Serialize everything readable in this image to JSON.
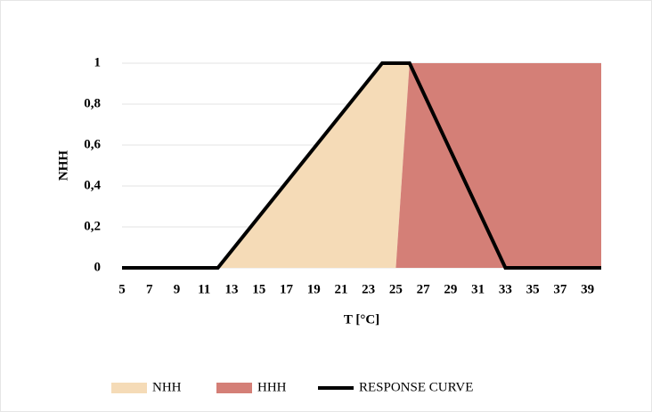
{
  "chart_data": {
    "type": "area",
    "x_label": "T [°C]",
    "y_label": "NHH",
    "xlim": [
      5,
      40
    ],
    "xticks": [
      5,
      7,
      9,
      11,
      13,
      15,
      17,
      19,
      21,
      23,
      25,
      27,
      29,
      31,
      33,
      35,
      37,
      39
    ],
    "ylim": [
      0,
      1
    ],
    "yticks": [
      0,
      {
        "value": 0.2,
        "label": "0,2"
      },
      {
        "value": 0.4,
        "label": "0,4"
      },
      {
        "value": 0.6,
        "label": "0,6"
      },
      {
        "value": 0.8,
        "label": "0,8"
      },
      1
    ],
    "grid": true,
    "series": [
      {
        "name": "NHH",
        "kind": "fill",
        "color": "#f5dbb7",
        "x": [
          12,
          24,
          26,
          25
        ],
        "values": [
          0,
          1,
          1,
          0
        ]
      },
      {
        "name": "HHH",
        "kind": "fill",
        "color": "#d47f77",
        "x": [
          25,
          26,
          40,
          40
        ],
        "values": [
          0,
          1,
          1,
          0
        ]
      },
      {
        "name": "RESPONSE CURVE",
        "kind": "line",
        "color": "#000000",
        "x": [
          5,
          12,
          24,
          26,
          33,
          40
        ],
        "values": [
          0,
          0,
          1,
          1,
          0,
          0
        ]
      }
    ]
  }
}
